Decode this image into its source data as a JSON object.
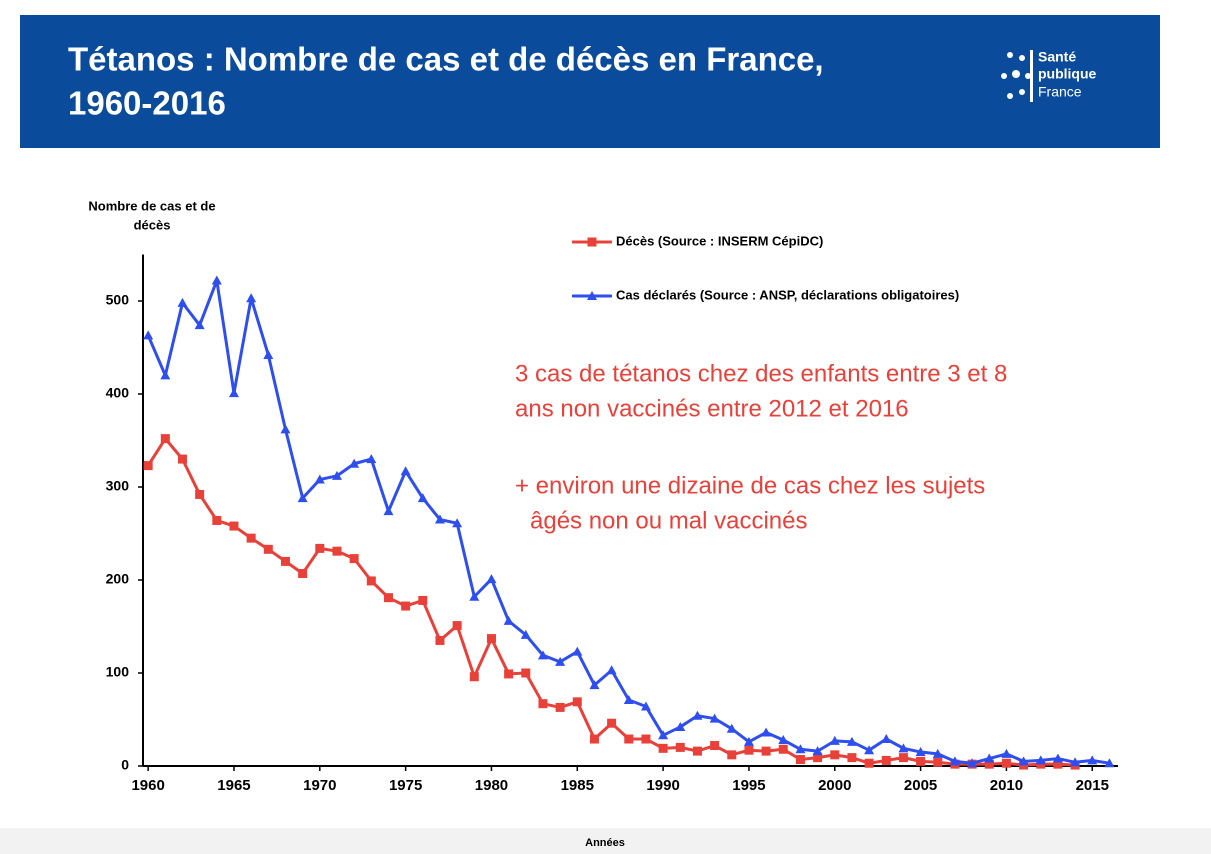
{
  "chart_data": {
    "type": "line",
    "title": [
      "Tétanos : Nombre de cas et de décès en France,",
      "1960-2016"
    ],
    "logo": [
      "Santé",
      "publique",
      "France"
    ],
    "ylabel": [
      "Nombre de cas et de",
      "décès"
    ],
    "xlabel": "Années",
    "annotations": [
      "3 cas de tétanos chez des enfants entre 3 et 8",
      "ans non vaccinés entre 2012 et 2016",
      "+ environ une dizaine de cas chez les sujets",
      "âgés non ou mal vaccinés"
    ],
    "x": [
      1960,
      1961,
      1962,
      1963,
      1964,
      1965,
      1966,
      1967,
      1968,
      1969,
      1970,
      1971,
      1972,
      1973,
      1974,
      1975,
      1976,
      1977,
      1978,
      1979,
      1980,
      1981,
      1982,
      1983,
      1984,
      1985,
      1986,
      1987,
      1988,
      1989,
      1990,
      1991,
      1992,
      1993,
      1994,
      1995,
      1996,
      1997,
      1998,
      1999,
      2000,
      2001,
      2002,
      2003,
      2004,
      2005,
      2006,
      2007,
      2008,
      2009,
      2010,
      2011,
      2012,
      2013,
      2014,
      2015,
      2016
    ],
    "series": [
      {
        "name": "Décès (Source : INSERM CépiDC)",
        "color": "#e8413a",
        "marker": "square",
        "values": [
          323,
          352,
          330,
          292,
          264,
          258,
          245,
          233,
          220,
          207,
          234,
          231,
          223,
          199,
          181,
          172,
          178,
          135,
          151,
          96,
          137,
          99,
          100,
          67,
          63,
          69,
          29,
          46,
          29,
          29,
          19,
          20,
          16,
          22,
          12,
          17,
          16,
          18,
          7,
          9,
          12,
          9,
          3,
          6,
          9,
          5,
          4,
          2,
          2,
          2,
          3,
          1,
          2,
          2,
          1,
          null,
          null
        ]
      },
      {
        "name": "Cas déclarés (Source : ANSP, déclarations obligatoires)",
        "color": "#2f4ef0",
        "marker": "triangle",
        "values": [
          463,
          420,
          498,
          474,
          522,
          401,
          503,
          442,
          362,
          288,
          308,
          312,
          325,
          330,
          274,
          317,
          288,
          265,
          261,
          182,
          201,
          156,
          141,
          119,
          112,
          123,
          87,
          103,
          71,
          64,
          33,
          42,
          54,
          51,
          40,
          26,
          36,
          28,
          18,
          16,
          27,
          26,
          17,
          29,
          19,
          15,
          13,
          5,
          3,
          8,
          13,
          5,
          6,
          8,
          4,
          6,
          3
        ]
      }
    ],
    "xlim": [
      1959.7,
      2016.5
    ],
    "xticks": [
      1960,
      1965,
      1970,
      1975,
      1980,
      1985,
      1990,
      1995,
      2000,
      2005,
      2010,
      2015
    ],
    "ylim": [
      0,
      550
    ],
    "yticks": [
      0,
      100,
      200,
      300,
      400,
      500
    ],
    "grid": false
  }
}
